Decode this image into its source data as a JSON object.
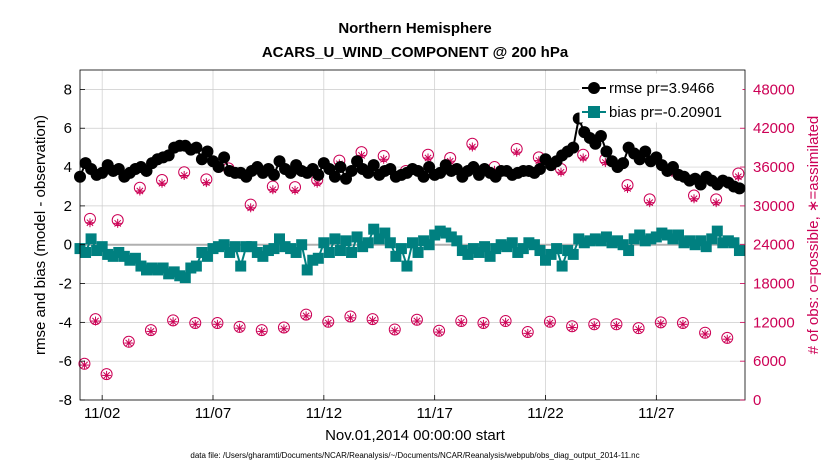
{
  "chart_data": {
    "type": "line",
    "title": "Northern Hemisphere",
    "subtitle": "ACARS_U_WIND_COMPONENT @ 200 hPa",
    "xlabel": "Nov.01,2014 00:00:00 start",
    "ylabel_left": "rmse and bias (model - observation)",
    "ylabel_right": "# of obs: o=possible, ∗=assimilated",
    "footnote": "data file: /Users/gharamti/Documents/NCAR/Reanalysis/~/Documents/NCAR/Reanalysis/webpub/obs_diag_output_2014-11.nc",
    "xlim": [
      0,
      30
    ],
    "ylim_left": [
      -8,
      9
    ],
    "ylim_right": [
      0,
      51000
    ],
    "x_ticks": [
      {
        "label": "11/02",
        "x": 1
      },
      {
        "label": "11/07",
        "x": 6
      },
      {
        "label": "11/12",
        "x": 11
      },
      {
        "label": "11/17",
        "x": 16
      },
      {
        "label": "11/22",
        "x": 21
      },
      {
        "label": "11/27",
        "x": 26
      }
    ],
    "y_ticks_left": [
      "8",
      "6",
      "4",
      "2",
      "0",
      "-2",
      "-4",
      "-6",
      "-8"
    ],
    "y_ticks_right": [
      "48000",
      "42000",
      "36000",
      "30000",
      "24000",
      "18000",
      "12000",
      "6000",
      "0"
    ],
    "grid": true,
    "legend_position": "top-right",
    "zero_line": true,
    "colors": {
      "rmse": "#000000",
      "bias": "#008080",
      "obs": "#cc0055",
      "right_axis": "#cc0055",
      "zero_line": "#b0b0b0",
      "grid": "#cccccc"
    },
    "series": [
      {
        "name": "rmse pr=3.9466",
        "marker": "circle",
        "x": [
          0.0,
          0.25,
          0.5,
          0.75,
          1.0,
          1.25,
          1.5,
          1.75,
          2.0,
          2.25,
          2.5,
          2.75,
          3.0,
          3.25,
          3.5,
          3.75,
          4.0,
          4.25,
          4.5,
          4.75,
          5.0,
          5.25,
          5.5,
          5.75,
          6.0,
          6.25,
          6.5,
          6.75,
          7.0,
          7.25,
          7.5,
          7.75,
          8.0,
          8.25,
          8.5,
          8.75,
          9.0,
          9.25,
          9.5,
          9.75,
          10.0,
          10.25,
          10.5,
          10.75,
          11.0,
          11.25,
          11.5,
          11.75,
          12.0,
          12.25,
          12.5,
          12.75,
          13.0,
          13.25,
          13.5,
          13.75,
          14.0,
          14.25,
          14.5,
          14.75,
          15.0,
          15.25,
          15.5,
          15.75,
          16.0,
          16.25,
          16.5,
          16.75,
          17.0,
          17.25,
          17.5,
          17.75,
          18.0,
          18.25,
          18.5,
          18.75,
          19.0,
          19.25,
          19.5,
          19.75,
          20.0,
          20.25,
          20.5,
          20.75,
          21.0,
          21.25,
          21.5,
          21.75,
          22.0,
          22.25,
          22.5,
          22.75,
          23.0,
          23.25,
          23.5,
          23.75,
          24.0,
          24.25,
          24.5,
          24.75,
          25.0,
          25.25,
          25.5,
          25.75,
          26.0,
          26.25,
          26.5,
          26.75,
          27.0,
          27.25,
          27.5,
          27.75,
          28.0,
          28.25,
          28.5,
          28.75,
          29.0,
          29.25,
          29.5,
          29.75
        ],
        "values": [
          3.5,
          4.2,
          3.9,
          3.6,
          3.7,
          4.1,
          3.8,
          3.9,
          3.5,
          3.7,
          3.9,
          4.0,
          3.8,
          4.2,
          4.4,
          4.5,
          4.6,
          5.0,
          5.1,
          5.1,
          4.9,
          5.0,
          4.4,
          4.8,
          4.3,
          4.0,
          4.5,
          3.8,
          3.7,
          3.7,
          3.5,
          3.8,
          4.0,
          3.7,
          3.9,
          3.6,
          4.3,
          3.9,
          3.7,
          4.1,
          3.8,
          3.7,
          3.9,
          3.6,
          4.2,
          3.9,
          3.5,
          4.0,
          3.4,
          3.8,
          4.3,
          3.9,
          3.7,
          4.1,
          3.6,
          3.8,
          3.9,
          3.5,
          3.6,
          3.7,
          3.9,
          3.8,
          3.5,
          4.0,
          3.6,
          3.7,
          4.1,
          3.8,
          3.9,
          3.5,
          3.8,
          4.0,
          3.6,
          3.9,
          3.7,
          3.5,
          3.8,
          3.8,
          3.6,
          3.7,
          3.8,
          3.8,
          3.7,
          3.9,
          4.4,
          4.1,
          4.3,
          4.6,
          4.8,
          5.0,
          6.5,
          5.8,
          5.5,
          5.2,
          5.6,
          4.8,
          4.3,
          4.0,
          4.2,
          5.0,
          4.7,
          4.4,
          4.8,
          4.3,
          4.5,
          4.1,
          3.8,
          4.0,
          3.6,
          3.5,
          3.3,
          3.4,
          3.1,
          3.5,
          3.3,
          3.1,
          3.3,
          3.2,
          3.0,
          2.9
        ],
        "line_segments_after_index": [
          [
            0,
            89
          ],
          [
            90,
            119
          ]
        ]
      },
      {
        "name": "bias pr=-0.20901",
        "marker": "square",
        "x": [
          0.0,
          0.25,
          0.5,
          0.75,
          1.0,
          1.25,
          1.5,
          1.75,
          2.0,
          2.25,
          2.5,
          2.75,
          3.0,
          3.25,
          3.5,
          3.75,
          4.0,
          4.25,
          4.5,
          4.75,
          5.0,
          5.25,
          5.5,
          5.75,
          6.0,
          6.25,
          6.5,
          6.75,
          7.0,
          7.25,
          7.5,
          7.75,
          8.0,
          8.25,
          8.5,
          8.75,
          9.0,
          9.25,
          9.5,
          9.75,
          10.0,
          10.25,
          10.5,
          10.75,
          11.0,
          11.25,
          11.5,
          11.75,
          12.0,
          12.25,
          12.5,
          12.75,
          13.0,
          13.25,
          13.5,
          13.75,
          14.0,
          14.25,
          14.5,
          14.75,
          15.0,
          15.25,
          15.5,
          15.75,
          16.0,
          16.25,
          16.5,
          16.75,
          17.0,
          17.25,
          17.5,
          17.75,
          18.0,
          18.25,
          18.5,
          18.75,
          19.0,
          19.25,
          19.5,
          19.75,
          20.0,
          20.25,
          20.5,
          20.75,
          21.0,
          21.25,
          21.5,
          21.75,
          22.0,
          22.25,
          22.5,
          22.75,
          23.0,
          23.25,
          23.5,
          23.75,
          24.0,
          24.25,
          24.5,
          24.75,
          25.0,
          25.25,
          25.5,
          25.75,
          26.0,
          26.25,
          26.5,
          26.75,
          27.0,
          27.25,
          27.5,
          27.75,
          28.0,
          28.25,
          28.5,
          28.75,
          29.0,
          29.25,
          29.5,
          29.75
        ],
        "values": [
          -0.2,
          -0.4,
          0.3,
          -0.3,
          -0.1,
          -0.5,
          -0.6,
          -0.4,
          -0.6,
          -0.8,
          -0.7,
          -1.1,
          -1.3,
          -1.2,
          -1.3,
          -1.2,
          -1.5,
          -1.4,
          -1.6,
          -1.7,
          -1.2,
          -1.1,
          -0.4,
          -0.6,
          -0.2,
          -0.1,
          0.0,
          -0.4,
          -0.1,
          -1.1,
          -0.1,
          -0.1,
          -0.4,
          -0.6,
          -0.3,
          -0.2,
          0.3,
          -0.1,
          -0.2,
          -0.4,
          0.0,
          -1.3,
          -0.8,
          -0.7,
          0.1,
          -0.4,
          0.3,
          -0.3,
          0.2,
          -0.4,
          0.4,
          -0.1,
          0.1,
          0.8,
          0.3,
          0.6,
          0.1,
          -0.6,
          -0.2,
          -1.1,
          0.1,
          -0.4,
          0.2,
          0.0,
          0.5,
          0.7,
          0.6,
          0.4,
          0.2,
          -0.3,
          -0.5,
          -0.2,
          -0.4,
          -0.1,
          -0.6,
          -0.2,
          0.0,
          -0.1,
          0.1,
          -0.4,
          -0.2,
          0.1,
          0.0,
          -0.3,
          -0.8,
          -0.5,
          -0.2,
          -1.1,
          -0.3,
          -0.5,
          0.3,
          0.1,
          0.2,
          0.3,
          0.2,
          0.4,
          0.1,
          0.2,
          0.0,
          -0.3,
          0.3,
          0.5,
          0.2,
          0.3,
          0.4,
          0.6,
          0.5,
          0.3,
          0.5,
          0.1,
          0.2,
          0.0,
          0.2,
          -0.1,
          0.3,
          0.7,
          0.1,
          0.2,
          0.1,
          -0.3
        ]
      },
      {
        "name": "# of obs possible",
        "marker": "open-circle",
        "axis": "right",
        "x": [
          0.2,
          0.45,
          0.7,
          1.2,
          1.7,
          2.2,
          2.7,
          3.2,
          3.7,
          4.2,
          4.7,
          5.2,
          5.7,
          6.2,
          6.7,
          7.2,
          7.7,
          8.2,
          8.7,
          9.2,
          9.7,
          10.2,
          10.7,
          11.2,
          11.7,
          12.2,
          12.7,
          13.2,
          13.7,
          14.2,
          14.7,
          15.2,
          15.7,
          16.2,
          16.7,
          17.2,
          17.7,
          18.2,
          18.7,
          19.2,
          19.7,
          20.2,
          20.7,
          21.2,
          21.7,
          22.2,
          22.7,
          23.2,
          23.7,
          24.2,
          24.7,
          25.2,
          25.7,
          26.2,
          26.7,
          27.2,
          27.7,
          28.2,
          28.7,
          29.2,
          29.7
        ],
        "values": [
          5600,
          28000,
          12500,
          4000,
          27800,
          9000,
          32800,
          10800,
          34000,
          12300,
          35200,
          11900,
          34100,
          11900,
          35800,
          11300,
          30200,
          10800,
          33000,
          11200,
          32900,
          13200,
          34000,
          12100,
          37000,
          12900,
          38300,
          12500,
          37700,
          10900,
          35400,
          12400,
          37900,
          10700,
          37400,
          12200,
          39600,
          11900,
          36000,
          12200,
          38800,
          10500,
          37500,
          12100,
          35700,
          11400,
          37900,
          11700,
          37200,
          11700,
          33200,
          11100,
          31000,
          12000,
          35700,
          11900,
          31600,
          10400,
          31000,
          9600,
          35000
        ],
        "note": "approximate representative subset of markers"
      },
      {
        "name": "# of obs assimilated",
        "marker": "asterisk",
        "axis": "right",
        "x": [
          0.2,
          0.45,
          0.7,
          1.2,
          1.7,
          2.2,
          2.7,
          3.2,
          3.7,
          4.2,
          4.7,
          5.2,
          5.7,
          6.2,
          6.7,
          7.2,
          7.7,
          8.2,
          8.7,
          9.2,
          9.7,
          10.2,
          10.7,
          11.2,
          11.7,
          12.2,
          12.7,
          13.2,
          13.7,
          14.2,
          14.7,
          15.2,
          15.7,
          16.2,
          16.7,
          17.2,
          17.7,
          18.2,
          18.7,
          19.2,
          19.7,
          20.2,
          20.7,
          21.2,
          21.7,
          22.2,
          22.7,
          23.2,
          23.7,
          24.2,
          24.7,
          25.2,
          25.7,
          26.2,
          26.7,
          27.2,
          27.7,
          28.2,
          28.7,
          29.2,
          29.7
        ],
        "values": [
          5400,
          27400,
          12200,
          3800,
          27300,
          8800,
          32300,
          10600,
          33500,
          12100,
          34700,
          11700,
          33600,
          11700,
          35300,
          11100,
          29700,
          10600,
          32500,
          11000,
          32400,
          13000,
          33500,
          11900,
          36500,
          12700,
          37800,
          12300,
          37200,
          10700,
          34900,
          12200,
          37400,
          10500,
          36900,
          12000,
          39100,
          11700,
          35500,
          12000,
          38300,
          10300,
          37000,
          11900,
          35200,
          11200,
          37400,
          11500,
          36700,
          11500,
          32700,
          10900,
          30500,
          11800,
          35200,
          11700,
          31100,
          10200,
          30500,
          9400,
          34500
        ]
      }
    ]
  }
}
